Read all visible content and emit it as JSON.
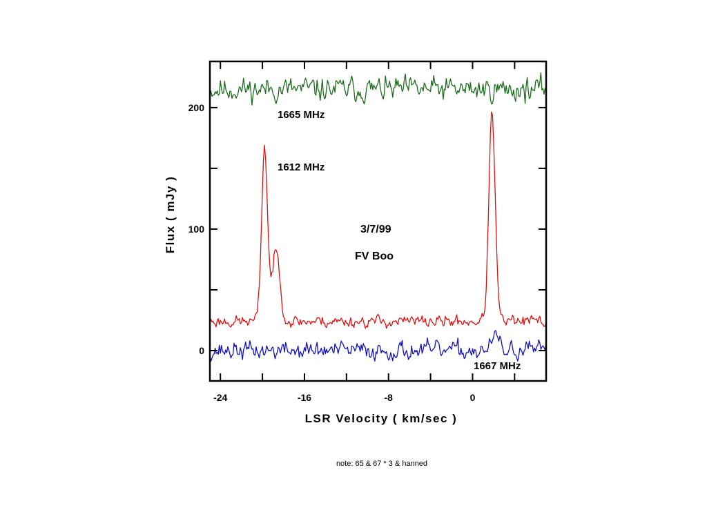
{
  "chart_data": {
    "type": "line",
    "title": "",
    "xlabel": "LSR  Velocity ( km/sec )",
    "ylabel": "Flux ( mJy )",
    "xlim": [
      -25,
      7
    ],
    "ylim": [
      -25,
      238
    ],
    "xticks": [
      -24,
      -16,
      -8,
      0
    ],
    "yticks": [
      0,
      100,
      200
    ],
    "grid": false,
    "series": [
      {
        "name": "1665 MHz",
        "color": "#1a6b1a",
        "baseline": 215,
        "noise": 8,
        "seed": 11,
        "peaks": []
      },
      {
        "name": "1612 MHz",
        "color": "#dd1111",
        "baseline": 24,
        "noise": 4,
        "seed": 23,
        "peaks": [
          {
            "center": -19.8,
            "height": 143,
            "width": 0.28
          },
          {
            "center": -18.7,
            "height": 57,
            "width": 0.38
          },
          {
            "center": 1.85,
            "height": 172,
            "width": 0.3
          }
        ]
      },
      {
        "name": "1667 MHz",
        "color": "#1111bb",
        "baseline": 0,
        "noise": 6,
        "seed": 37,
        "peaks": [
          {
            "center": 2.2,
            "height": 13,
            "width": 0.3
          }
        ]
      }
    ],
    "annotations": [
      "1665 MHz",
      "1612 MHz",
      "1667 MHz",
      "3/7/99",
      "FV  Boo"
    ]
  },
  "note": "note:  65 & 67  * 3 &  hanned"
}
